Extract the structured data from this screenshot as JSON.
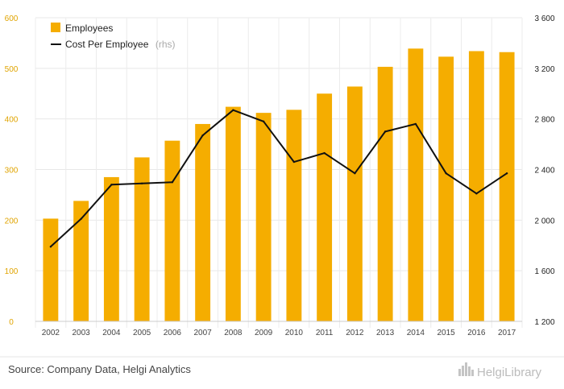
{
  "chart_data": {
    "type": "bar",
    "categories": [
      "2002",
      "2003",
      "2004",
      "2005",
      "2006",
      "2007",
      "2008",
      "2009",
      "2010",
      "2011",
      "2012",
      "2013",
      "2014",
      "2015",
      "2016",
      "2017"
    ],
    "series": [
      {
        "name": "Employees",
        "type": "bar",
        "axis": "left",
        "color": "#f5ad00",
        "values": [
          203,
          238,
          285,
          324,
          357,
          390,
          424,
          412,
          418,
          450,
          464,
          503,
          539,
          523,
          534,
          532
        ]
      },
      {
        "name": "Cost Per Employee",
        "type": "line",
        "axis": "right",
        "color": "#111111",
        "values": [
          1790,
          2010,
          2280,
          2290,
          2300,
          2670,
          2870,
          2780,
          2460,
          2530,
          2370,
          2700,
          2760,
          2370,
          2210,
          2370
        ]
      }
    ],
    "ylim": [
      0,
      600
    ],
    "y2lim": [
      1200,
      3600
    ],
    "yticks": [
      "0",
      "100",
      "200",
      "300",
      "400",
      "500",
      "600"
    ],
    "y2ticks": [
      "1 200",
      "1 600",
      "2 000",
      "2 400",
      "2 800",
      "3 200",
      "3 600"
    ],
    "grid": true,
    "legend": {
      "position": "top-left",
      "entries": [
        {
          "label": "Employees",
          "note": ""
        },
        {
          "label": "Cost Per Employee",
          "note": "(rhs)"
        }
      ]
    }
  },
  "footer": {
    "source": "Source: Company Data, Helgi Analytics",
    "logo": "HelgiLibrary"
  }
}
